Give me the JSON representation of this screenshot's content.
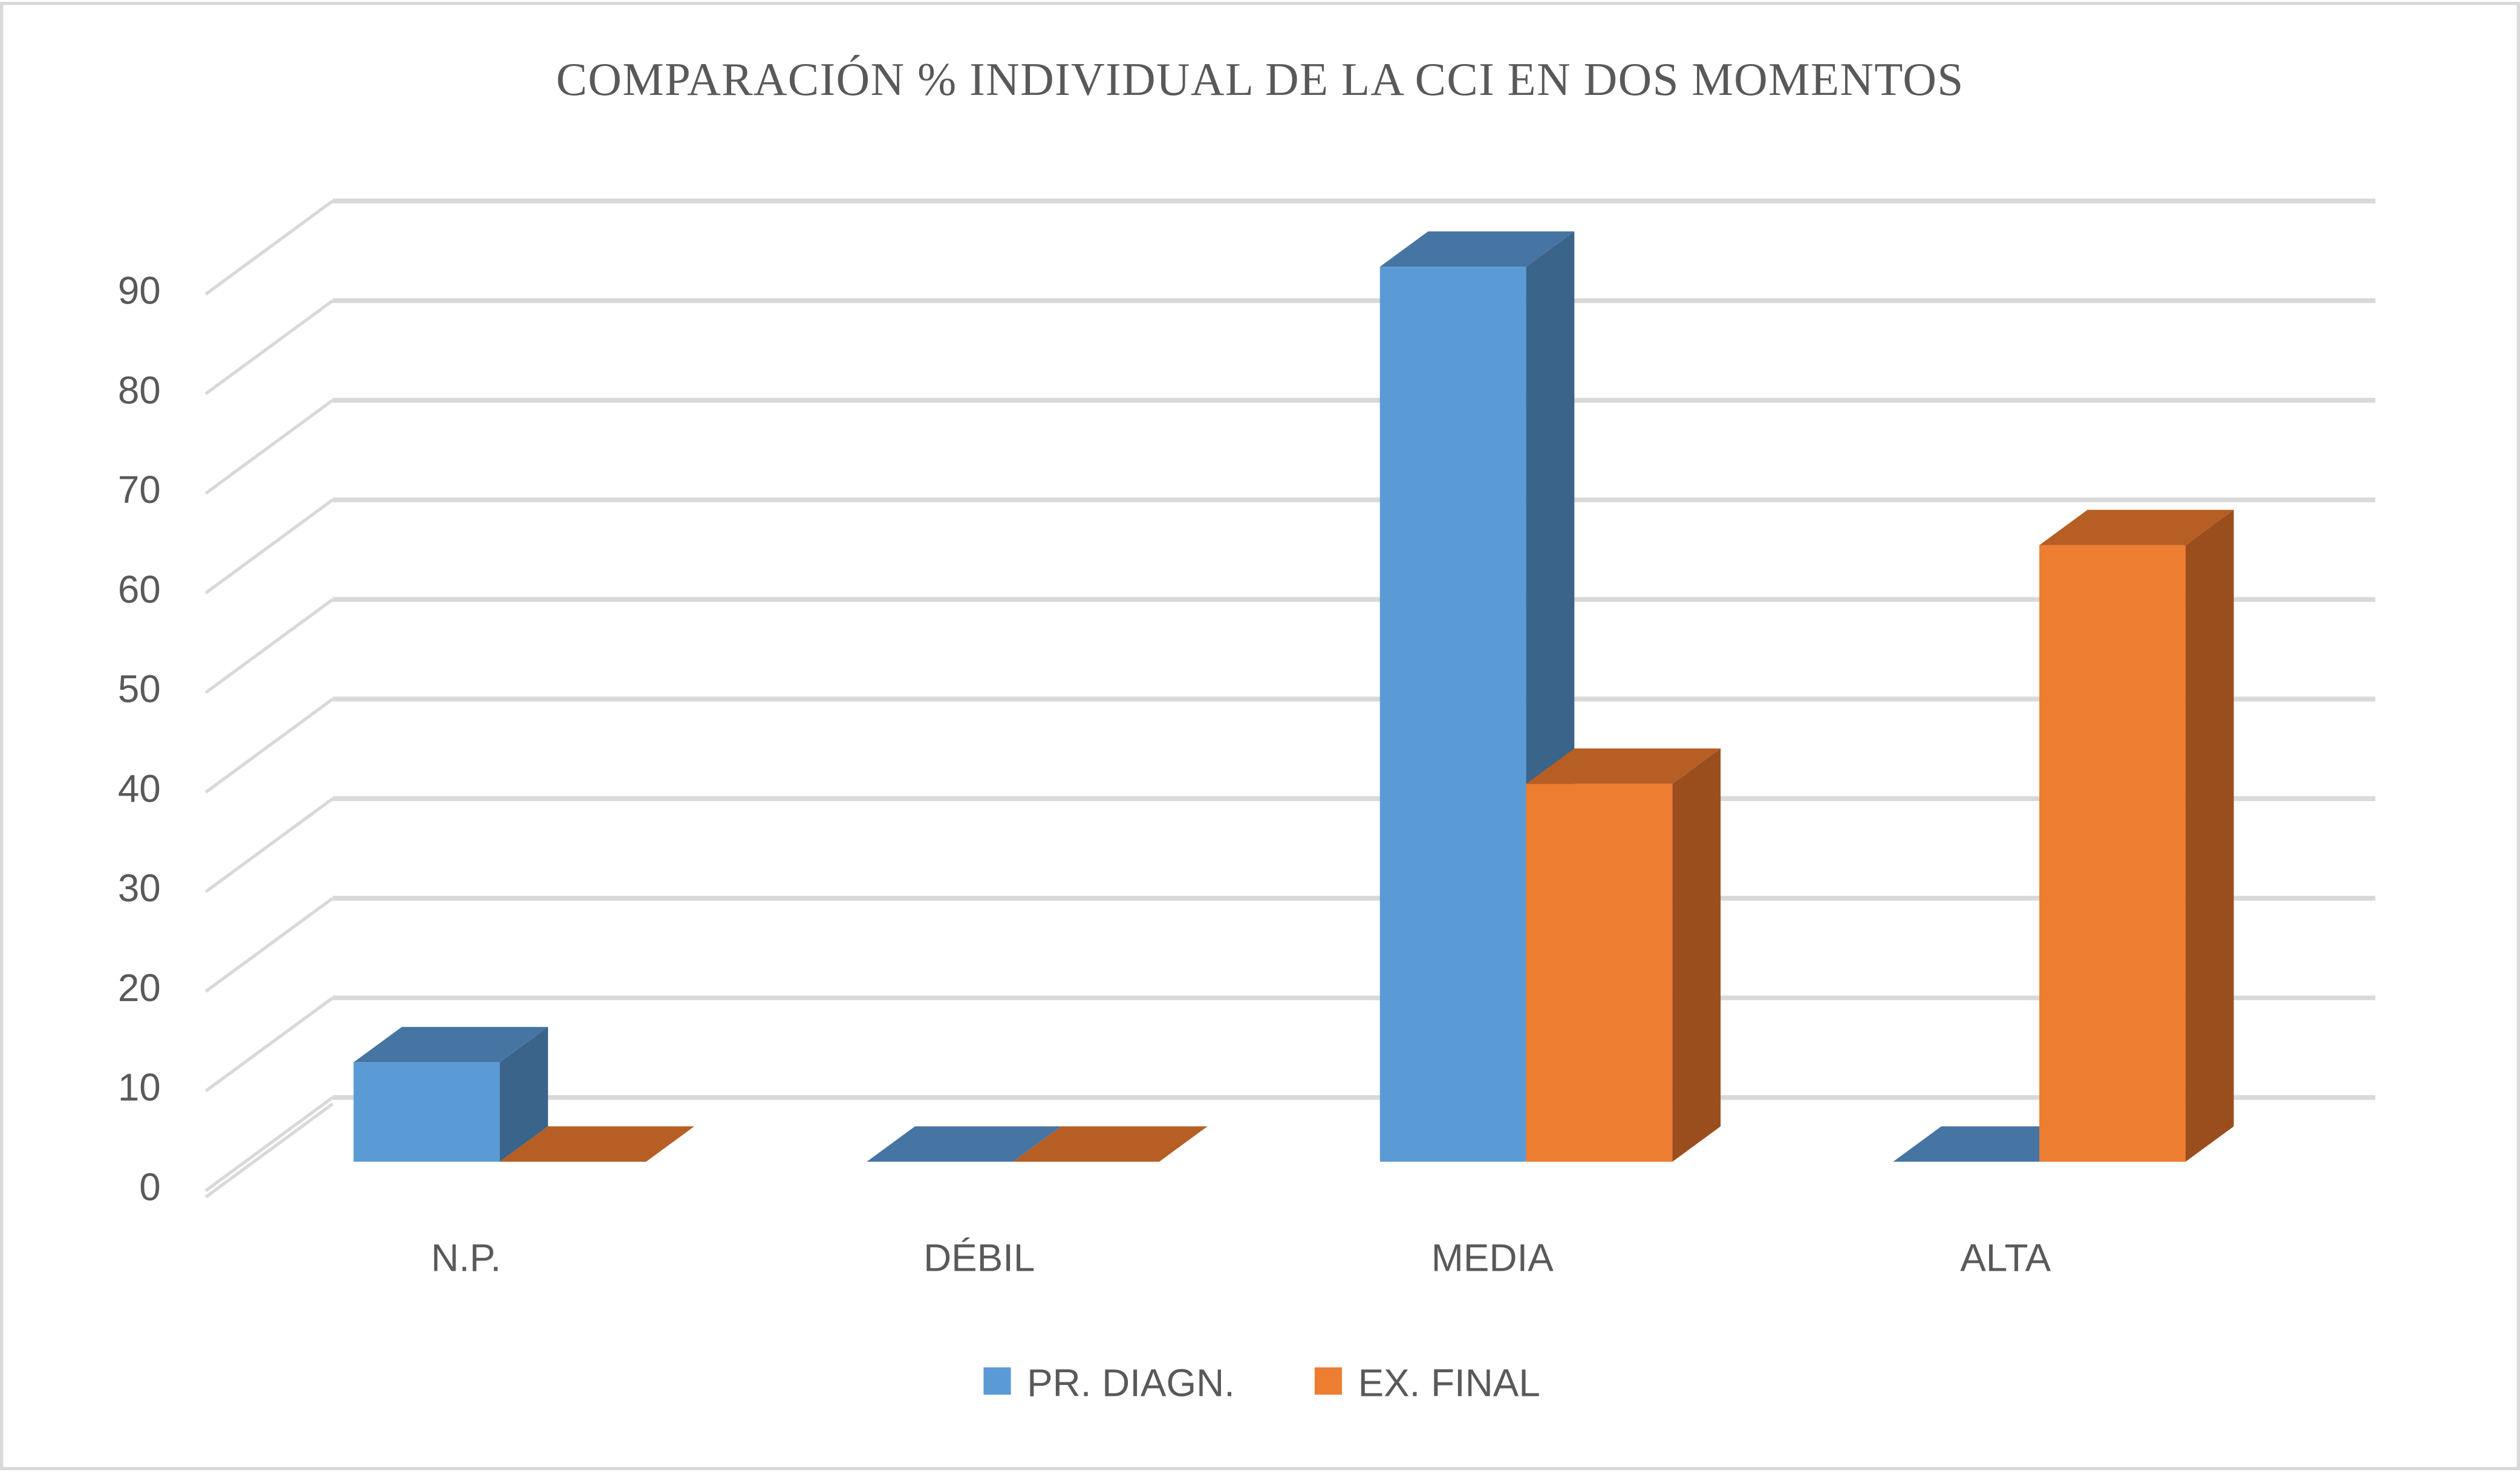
{
  "chart_data": {
    "type": "bar",
    "variant": "3d-clustered-column",
    "title": "COMPARACIÓN  % INDIVIDUAL  DE LA CCI  EN DOS  MOMENTOS",
    "xlabel": "",
    "ylabel": "",
    "categories": [
      "N.P.",
      "DÉBIL",
      "MEDIA",
      "ALTA"
    ],
    "series": [
      {
        "name": "PR. DIAGN.",
        "values": [
          10,
          0,
          90,
          0
        ],
        "color": "#5B9BD5",
        "top": "#4675A3",
        "side": "#3A6489"
      },
      {
        "name": "EX. FINAL",
        "values": [
          0,
          0,
          38,
          62
        ],
        "color": "#ED7D31",
        "top": "#B65E24",
        "side": "#9A4E1E"
      }
    ],
    "ylim": [
      0,
      100
    ],
    "yticks": [
      0,
      10,
      20,
      30,
      40,
      50,
      60,
      70,
      80,
      90
    ],
    "grid": true,
    "legend": "bottom"
  }
}
